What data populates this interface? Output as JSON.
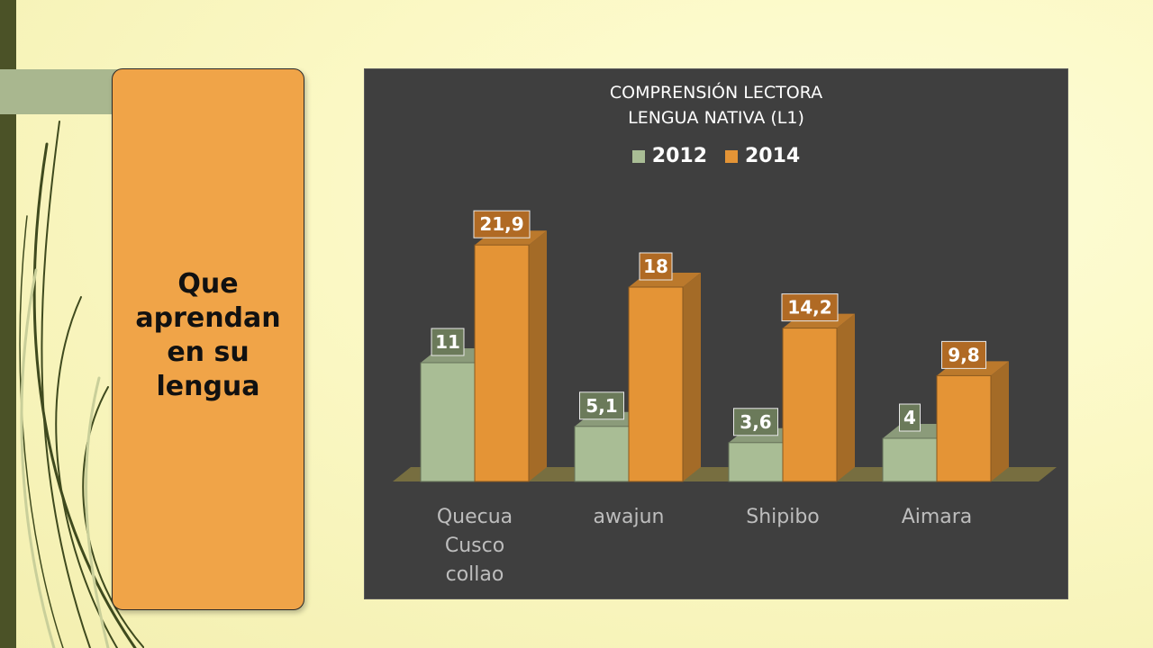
{
  "slide": {
    "card_text": "Que\naprendan\nen su\nlengua"
  },
  "colors": {
    "series_2012": "#a9bd95",
    "series_2014": "#e49436",
    "panel": "#3f3f3f",
    "floor": "#7d7340",
    "card": "#f0a448"
  },
  "chart_data": {
    "type": "bar",
    "title": "COMPRENSIÓN LECTORA",
    "subtitle": "LENGUA NATIVA (L1)",
    "categories": [
      "Quecua Cusco collao",
      "awajun",
      "Shipibo",
      "Aimara"
    ],
    "category_lines": [
      [
        "Quecua",
        "Cusco",
        "collao"
      ],
      [
        "awajun"
      ],
      [
        "Shipibo"
      ],
      [
        "Aimara"
      ]
    ],
    "series": [
      {
        "name": "2012",
        "values": [
          11,
          5.1,
          3.6,
          4
        ],
        "labels": [
          "11",
          "5,1",
          "3,6",
          "4"
        ]
      },
      {
        "name": "2014",
        "values": [
          21.9,
          18,
          14.2,
          9.8
        ],
        "labels": [
          "21,9",
          "18",
          "14,2",
          "9,8"
        ]
      }
    ],
    "ylim": [
      0,
      22
    ],
    "legend": "top",
    "grid": false,
    "style": "3d-clustered"
  }
}
